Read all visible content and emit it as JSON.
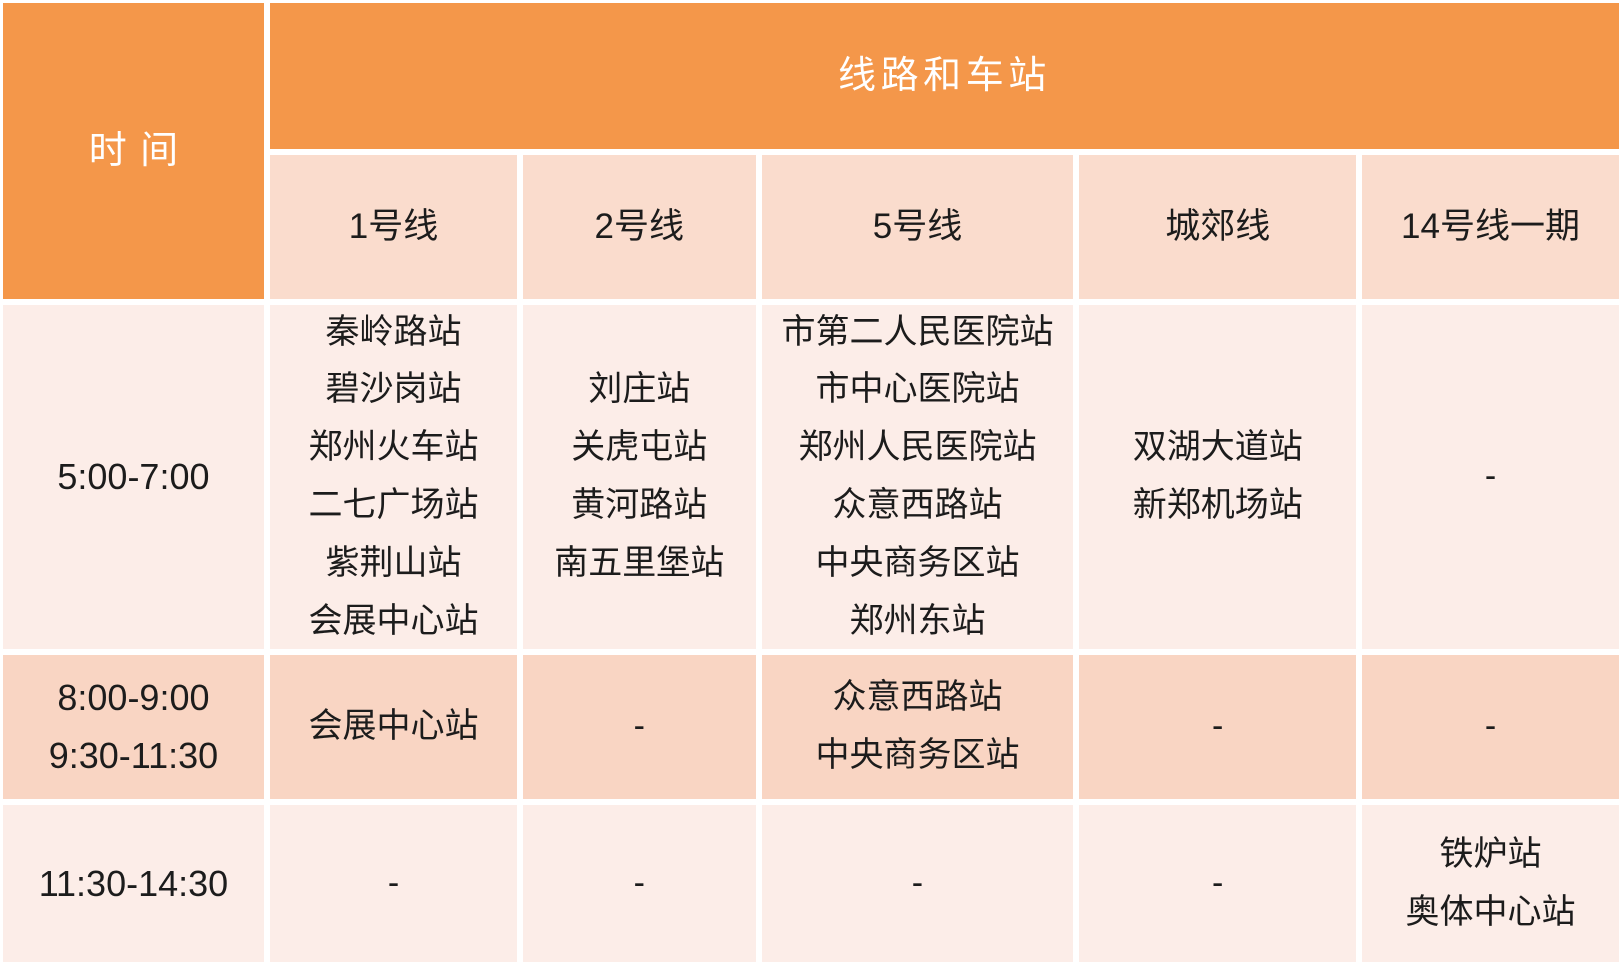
{
  "colors": {
    "header_orange": "#f4974a",
    "subheader_pink": "#fadccd",
    "row_light_pink": "#fcede8",
    "row_dark_pink": "#f9d5c3",
    "gridline_white": "#ffffff",
    "header_text": "#ffffff",
    "body_text": "#1c1c1c"
  },
  "chart_data": {
    "type": "table",
    "corner_header": "时间",
    "banner_header": "线路和车站",
    "column_headers": [
      "1号线",
      "2号线",
      "5号线",
      "城郊线",
      "14号线一期"
    ],
    "rows": [
      {
        "time": "5:00-7:00",
        "cells": [
          "秦岭路站\n碧沙岗站\n郑州火车站\n二七广场站\n紫荆山站\n会展中心站",
          "刘庄站\n关虎屯站\n黄河路站\n南五里堡站",
          "市第二人民医院站\n市中心医院站\n郑州人民医院站\n众意西路站\n中央商务区站\n郑州东站",
          "双湖大道站\n新郑机场站",
          "-"
        ]
      },
      {
        "time": "8:00-9:00\n9:30-11:30",
        "cells": [
          "会展中心站",
          "-",
          "众意西路站\n中央商务区站",
          "-",
          "-"
        ]
      },
      {
        "time": "11:30-14:30",
        "cells": [
          "-",
          "-",
          "-",
          "-",
          "铁炉站\n奥体中心站"
        ]
      }
    ]
  }
}
